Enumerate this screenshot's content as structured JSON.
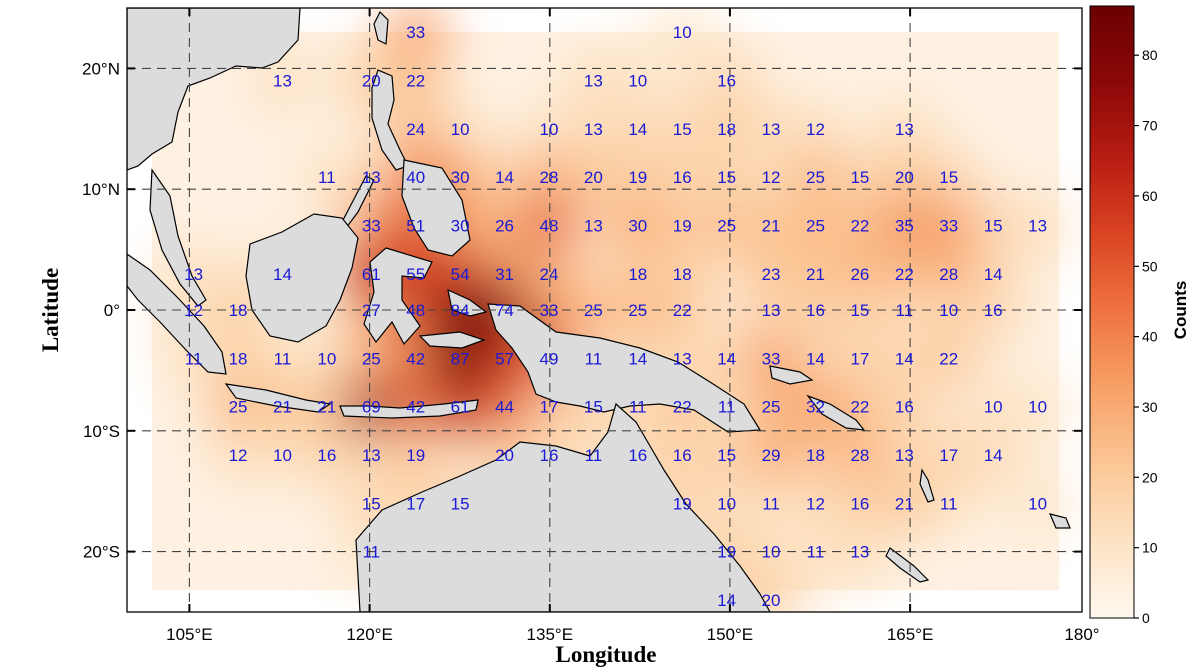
{
  "map": {
    "xlabel": "Longitude",
    "ylabel": "Latitude",
    "lon_range": [
      96,
      182
    ],
    "lat_range": [
      -25,
      25
    ],
    "lon_ticks": [
      {
        "value": 105,
        "label": "105°E"
      },
      {
        "value": 120,
        "label": "120°E"
      },
      {
        "value": 135,
        "label": "135°E"
      },
      {
        "value": 150,
        "label": "150°E"
      },
      {
        "value": 165,
        "label": "165°E"
      },
      {
        "value": 180,
        "label": "180°"
      }
    ],
    "lat_ticks": [
      {
        "value": 20,
        "label": "20°N"
      },
      {
        "value": 10,
        "label": "10°N"
      },
      {
        "value": 0,
        "label": "0°"
      },
      {
        "value": -10,
        "label": "10°S"
      },
      {
        "value": -20,
        "label": "20°S"
      }
    ],
    "grid": "dashed",
    "land_color": "#dcdcdc",
    "colorbar": {
      "title": "Counts",
      "range": [
        0,
        87
      ],
      "ticks": [
        "0",
        "10",
        "20",
        "30",
        "40",
        "50",
        "60",
        "70",
        "80"
      ],
      "colors": [
        "#fff8ef",
        "#fde3c4",
        "#fbc796",
        "#f7a167",
        "#ef7441",
        "#da4523",
        "#b71d12",
        "#8c0808",
        "#6b0000"
      ]
    }
  },
  "chart_data": {
    "type": "heatmap",
    "title": "",
    "xlabel": "Longitude",
    "ylabel": "Latitude",
    "xlim": [
      96,
      182
    ],
    "ylim": [
      -25,
      25
    ],
    "value_name": "Counts",
    "cells": [
      {
        "lon": 122,
        "lat": 23,
        "count": 33
      },
      {
        "lon": 146,
        "lat": 23,
        "count": 10
      },
      {
        "lon": 110,
        "lat": 19,
        "count": 13
      },
      {
        "lon": 118,
        "lat": 19,
        "count": 20
      },
      {
        "lon": 122,
        "lat": 19,
        "count": 22
      },
      {
        "lon": 138,
        "lat": 19,
        "count": 13
      },
      {
        "lon": 142,
        "lat": 19,
        "count": 10
      },
      {
        "lon": 150,
        "lat": 19,
        "count": 16
      },
      {
        "lon": 122,
        "lat": 15,
        "count": 24
      },
      {
        "lon": 126,
        "lat": 15,
        "count": 10
      },
      {
        "lon": 134,
        "lat": 15,
        "count": 10
      },
      {
        "lon": 138,
        "lat": 15,
        "count": 13
      },
      {
        "lon": 142,
        "lat": 15,
        "count": 14
      },
      {
        "lon": 146,
        "lat": 15,
        "count": 15
      },
      {
        "lon": 150,
        "lat": 15,
        "count": 18
      },
      {
        "lon": 154,
        "lat": 15,
        "count": 13
      },
      {
        "lon": 158,
        "lat": 15,
        "count": 12
      },
      {
        "lon": 166,
        "lat": 15,
        "count": 13
      },
      {
        "lon": 114,
        "lat": 11,
        "count": 11
      },
      {
        "lon": 118,
        "lat": 11,
        "count": 13
      },
      {
        "lon": 122,
        "lat": 11,
        "count": 40
      },
      {
        "lon": 126,
        "lat": 11,
        "count": 30
      },
      {
        "lon": 130,
        "lat": 11,
        "count": 14
      },
      {
        "lon": 134,
        "lat": 11,
        "count": 28
      },
      {
        "lon": 138,
        "lat": 11,
        "count": 20
      },
      {
        "lon": 142,
        "lat": 11,
        "count": 19
      },
      {
        "lon": 146,
        "lat": 11,
        "count": 16
      },
      {
        "lon": 150,
        "lat": 11,
        "count": 15
      },
      {
        "lon": 154,
        "lat": 11,
        "count": 12
      },
      {
        "lon": 158,
        "lat": 11,
        "count": 25
      },
      {
        "lon": 162,
        "lat": 11,
        "count": 15
      },
      {
        "lon": 166,
        "lat": 11,
        "count": 20
      },
      {
        "lon": 170,
        "lat": 11,
        "count": 15
      },
      {
        "lon": 118,
        "lat": 7,
        "count": 33
      },
      {
        "lon": 122,
        "lat": 7,
        "count": 51
      },
      {
        "lon": 126,
        "lat": 7,
        "count": 30
      },
      {
        "lon": 130,
        "lat": 7,
        "count": 26
      },
      {
        "lon": 134,
        "lat": 7,
        "count": 48
      },
      {
        "lon": 138,
        "lat": 7,
        "count": 13
      },
      {
        "lon": 142,
        "lat": 7,
        "count": 30
      },
      {
        "lon": 146,
        "lat": 7,
        "count": 19
      },
      {
        "lon": 150,
        "lat": 7,
        "count": 25
      },
      {
        "lon": 154,
        "lat": 7,
        "count": 21
      },
      {
        "lon": 158,
        "lat": 7,
        "count": 25
      },
      {
        "lon": 162,
        "lat": 7,
        "count": 22
      },
      {
        "lon": 166,
        "lat": 7,
        "count": 35
      },
      {
        "lon": 170,
        "lat": 7,
        "count": 33
      },
      {
        "lon": 174,
        "lat": 7,
        "count": 15
      },
      {
        "lon": 178,
        "lat": 7,
        "count": 13
      },
      {
        "lon": 102,
        "lat": 3,
        "count": 13
      },
      {
        "lon": 110,
        "lat": 3,
        "count": 14
      },
      {
        "lon": 118,
        "lat": 3,
        "count": 61
      },
      {
        "lon": 122,
        "lat": 3,
        "count": 55
      },
      {
        "lon": 126,
        "lat": 3,
        "count": 54
      },
      {
        "lon": 130,
        "lat": 3,
        "count": 31
      },
      {
        "lon": 134,
        "lat": 3,
        "count": 24
      },
      {
        "lon": 142,
        "lat": 3,
        "count": 18
      },
      {
        "lon": 146,
        "lat": 3,
        "count": 18
      },
      {
        "lon": 154,
        "lat": 3,
        "count": 23
      },
      {
        "lon": 158,
        "lat": 3,
        "count": 21
      },
      {
        "lon": 162,
        "lat": 3,
        "count": 26
      },
      {
        "lon": 166,
        "lat": 3,
        "count": 22
      },
      {
        "lon": 170,
        "lat": 3,
        "count": 28
      },
      {
        "lon": 174,
        "lat": 3,
        "count": 14
      },
      {
        "lon": 102,
        "lat": 0,
        "count": 12
      },
      {
        "lon": 106,
        "lat": 0,
        "count": 18
      },
      {
        "lon": 118,
        "lat": 0,
        "count": 27
      },
      {
        "lon": 122,
        "lat": 0,
        "count": 48
      },
      {
        "lon": 126,
        "lat": 0,
        "count": 84
      },
      {
        "lon": 130,
        "lat": 0,
        "count": 74
      },
      {
        "lon": 134,
        "lat": 0,
        "count": 33
      },
      {
        "lon": 138,
        "lat": 0,
        "count": 25
      },
      {
        "lon": 142,
        "lat": 0,
        "count": 25
      },
      {
        "lon": 146,
        "lat": 0,
        "count": 22
      },
      {
        "lon": 154,
        "lat": 0,
        "count": 13
      },
      {
        "lon": 158,
        "lat": 0,
        "count": 16
      },
      {
        "lon": 162,
        "lat": 0,
        "count": 15
      },
      {
        "lon": 166,
        "lat": 0,
        "count": 11
      },
      {
        "lon": 170,
        "lat": 0,
        "count": 10
      },
      {
        "lon": 174,
        "lat": 0,
        "count": 16
      },
      {
        "lon": 102,
        "lat": -4,
        "count": 11
      },
      {
        "lon": 106,
        "lat": -4,
        "count": 18
      },
      {
        "lon": 110,
        "lat": -4,
        "count": 11
      },
      {
        "lon": 114,
        "lat": -4,
        "count": 10
      },
      {
        "lon": 118,
        "lat": -4,
        "count": 25
      },
      {
        "lon": 122,
        "lat": -4,
        "count": 42
      },
      {
        "lon": 126,
        "lat": -4,
        "count": 87
      },
      {
        "lon": 130,
        "lat": -4,
        "count": 57
      },
      {
        "lon": 134,
        "lat": -4,
        "count": 49
      },
      {
        "lon": 138,
        "lat": -4,
        "count": 11
      },
      {
        "lon": 142,
        "lat": -4,
        "count": 14
      },
      {
        "lon": 146,
        "lat": -4,
        "count": 13
      },
      {
        "lon": 150,
        "lat": -4,
        "count": 14
      },
      {
        "lon": 154,
        "lat": -4,
        "count": 33
      },
      {
        "lon": 158,
        "lat": -4,
        "count": 14
      },
      {
        "lon": 162,
        "lat": -4,
        "count": 17
      },
      {
        "lon": 166,
        "lat": -4,
        "count": 14
      },
      {
        "lon": 170,
        "lat": -4,
        "count": 22
      },
      {
        "lon": 106,
        "lat": -8,
        "count": 25
      },
      {
        "lon": 110,
        "lat": -8,
        "count": 21
      },
      {
        "lon": 114,
        "lat": -8,
        "count": 21
      },
      {
        "lon": 118,
        "lat": -8,
        "count": 69
      },
      {
        "lon": 122,
        "lat": -8,
        "count": 42
      },
      {
        "lon": 126,
        "lat": -8,
        "count": 61
      },
      {
        "lon": 130,
        "lat": -8,
        "count": 44
      },
      {
        "lon": 134,
        "lat": -8,
        "count": 17
      },
      {
        "lon": 138,
        "lat": -8,
        "count": 15
      },
      {
        "lon": 142,
        "lat": -8,
        "count": 11
      },
      {
        "lon": 146,
        "lat": -8,
        "count": 22
      },
      {
        "lon": 150,
        "lat": -8,
        "count": 11
      },
      {
        "lon": 154,
        "lat": -8,
        "count": 25
      },
      {
        "lon": 158,
        "lat": -8,
        "count": 32
      },
      {
        "lon": 162,
        "lat": -8,
        "count": 22
      },
      {
        "lon": 166,
        "lat": -8,
        "count": 16
      },
      {
        "lon": 174,
        "lat": -8,
        "count": 10
      },
      {
        "lon": 178,
        "lat": -8,
        "count": 10
      },
      {
        "lon": 106,
        "lat": -12,
        "count": 12
      },
      {
        "lon": 110,
        "lat": -12,
        "count": 10
      },
      {
        "lon": 114,
        "lat": -12,
        "count": 16
      },
      {
        "lon": 118,
        "lat": -12,
        "count": 13
      },
      {
        "lon": 122,
        "lat": -12,
        "count": 19
      },
      {
        "lon": 130,
        "lat": -12,
        "count": 20
      },
      {
        "lon": 134,
        "lat": -12,
        "count": 16
      },
      {
        "lon": 138,
        "lat": -12,
        "count": 11
      },
      {
        "lon": 142,
        "lat": -12,
        "count": 16
      },
      {
        "lon": 146,
        "lat": -12,
        "count": 16
      },
      {
        "lon": 150,
        "lat": -12,
        "count": 15
      },
      {
        "lon": 154,
        "lat": -12,
        "count": 29
      },
      {
        "lon": 158,
        "lat": -12,
        "count": 18
      },
      {
        "lon": 162,
        "lat": -12,
        "count": 28
      },
      {
        "lon": 166,
        "lat": -12,
        "count": 13
      },
      {
        "lon": 170,
        "lat": -12,
        "count": 17
      },
      {
        "lon": 174,
        "lat": -12,
        "count": 14
      },
      {
        "lon": 118,
        "lat": -16,
        "count": 15
      },
      {
        "lon": 122,
        "lat": -16,
        "count": 17
      },
      {
        "lon": 126,
        "lat": -16,
        "count": 15
      },
      {
        "lon": 146,
        "lat": -16,
        "count": 19
      },
      {
        "lon": 150,
        "lat": -16,
        "count": 10
      },
      {
        "lon": 154,
        "lat": -16,
        "count": 11
      },
      {
        "lon": 158,
        "lat": -16,
        "count": 12
      },
      {
        "lon": 162,
        "lat": -16,
        "count": 16
      },
      {
        "lon": 166,
        "lat": -16,
        "count": 21
      },
      {
        "lon": 170,
        "lat": -16,
        "count": 11
      },
      {
        "lon": 178,
        "lat": -16,
        "count": 10
      },
      {
        "lon": 118,
        "lat": -20,
        "count": 11
      },
      {
        "lon": 150,
        "lat": -20,
        "count": 19
      },
      {
        "lon": 154,
        "lat": -20,
        "count": 10
      },
      {
        "lon": 158,
        "lat": -20,
        "count": 11
      },
      {
        "lon": 162,
        "lat": -20,
        "count": 13
      },
      {
        "lon": 150,
        "lat": -24,
        "count": 14
      },
      {
        "lon": 154,
        "lat": -24,
        "count": 20
      }
    ]
  }
}
